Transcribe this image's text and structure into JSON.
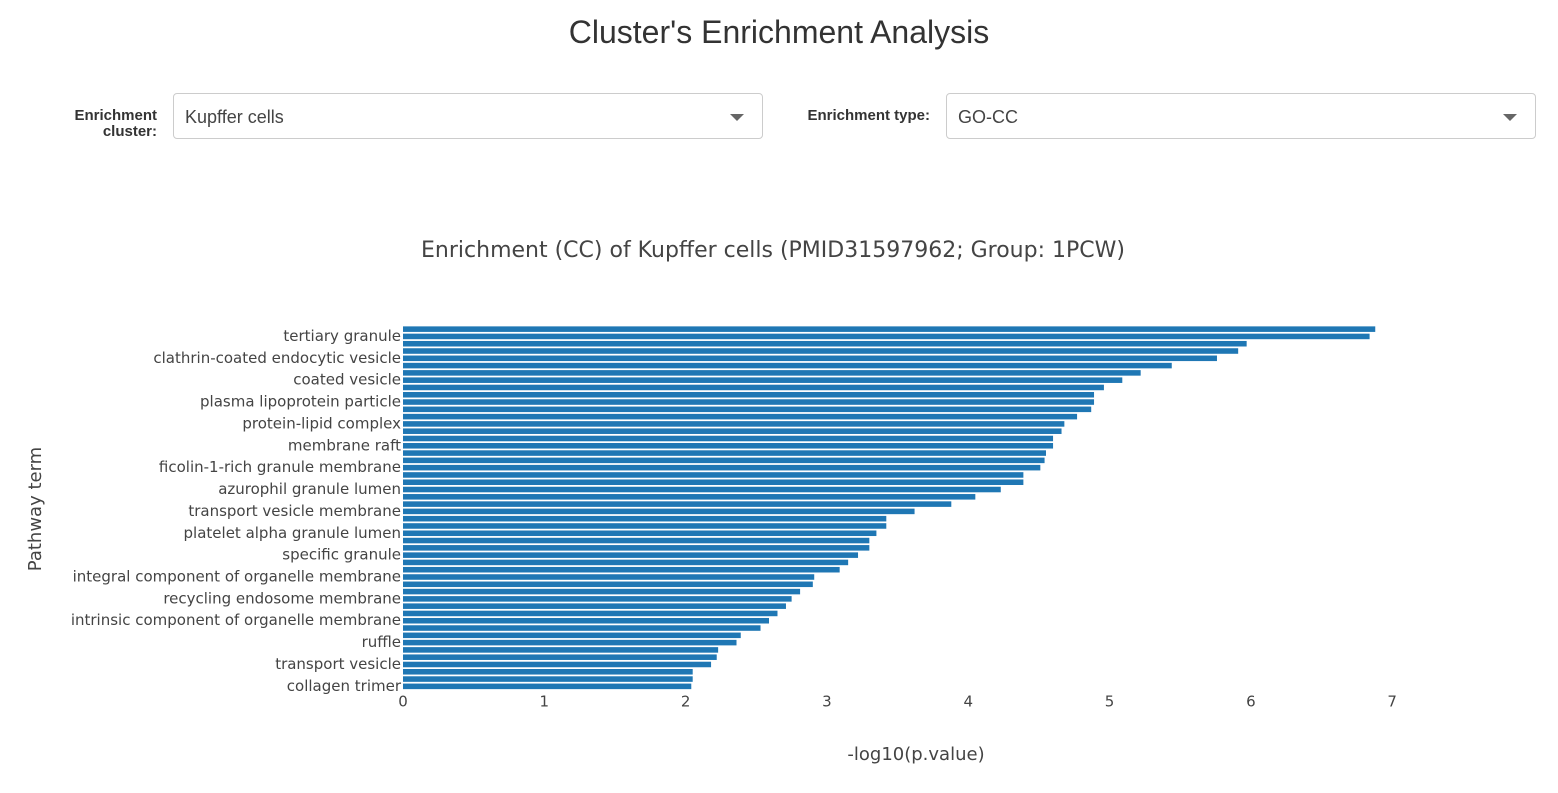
{
  "header": {
    "title": "Cluster's Enrichment Analysis"
  },
  "controls": [
    {
      "label": "Enrichment cluster:",
      "value": "Kupffer cells"
    },
    {
      "label": "Enrichment type:",
      "value": "GO-CC"
    }
  ],
  "chart_data": {
    "type": "bar",
    "orientation": "horizontal",
    "title": "Enrichment (CC) of Kupffer cells (PMID31597962; Group: 1PCW)",
    "x_label": "-log10(p.value)",
    "y_label": "Pathway term",
    "color": "#1f77b4",
    "categories": [
      null,
      "tertiary granule",
      null,
      null,
      "clathrin-coated endocytic vesicle",
      null,
      null,
      "coated vesicle",
      null,
      null,
      "plasma lipoprotein particle",
      null,
      null,
      "protein-lipid complex",
      null,
      null,
      "membrane raft",
      null,
      null,
      "ficolin-1-rich granule membrane",
      null,
      null,
      "azurophil granule lumen",
      null,
      null,
      "transport vesicle membrane",
      null,
      null,
      "platelet alpha granule lumen",
      null,
      null,
      "specific granule",
      null,
      null,
      "integral component of organelle membrane",
      null,
      null,
      "recycling endosome membrane",
      null,
      null,
      "intrinsic component of organelle membrane",
      null,
      null,
      "ruffle",
      null,
      null,
      "transport vesicle",
      null,
      null,
      "collagen trimer"
    ],
    "values": [
      6.88,
      6.84,
      5.97,
      5.91,
      5.76,
      5.44,
      5.22,
      5.09,
      4.96,
      4.89,
      4.89,
      4.87,
      4.77,
      4.68,
      4.66,
      4.6,
      4.6,
      4.55,
      4.54,
      4.51,
      4.39,
      4.39,
      4.23,
      4.05,
      3.88,
      3.62,
      3.42,
      3.42,
      3.35,
      3.3,
      3.3,
      3.22,
      3.15,
      3.09,
      2.91,
      2.9,
      2.81,
      2.75,
      2.71,
      2.65,
      2.59,
      2.53,
      2.39,
      2.36,
      2.23,
      2.22,
      2.18,
      2.05,
      2.05,
      2.04
    ],
    "xlim": [
      0,
      7.6
    ],
    "xticks": [
      0,
      1,
      2,
      3,
      4,
      5,
      6,
      7
    ]
  }
}
